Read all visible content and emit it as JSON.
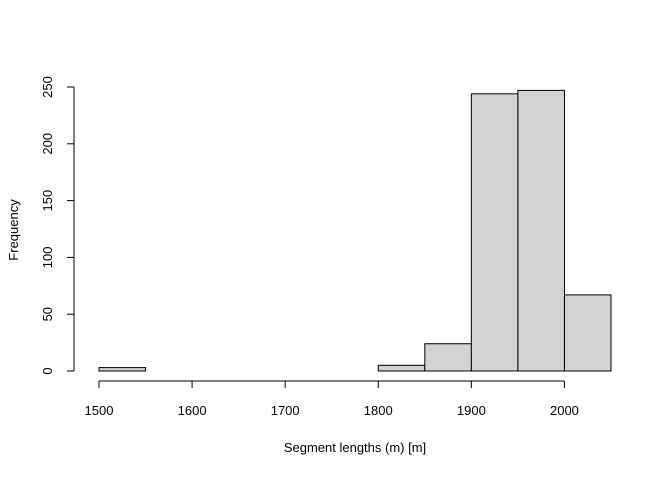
{
  "chart_data": {
    "type": "bar",
    "subtype": "histogram",
    "title": "",
    "xlabel": "Segment lengths (m) [m]",
    "ylabel": "Frequency",
    "bins": [
      {
        "start": 1500,
        "end": 1550,
        "count": 3
      },
      {
        "start": 1550,
        "end": 1600,
        "count": 0
      },
      {
        "start": 1600,
        "end": 1650,
        "count": 0
      },
      {
        "start": 1650,
        "end": 1700,
        "count": 0
      },
      {
        "start": 1700,
        "end": 1750,
        "count": 0
      },
      {
        "start": 1750,
        "end": 1800,
        "count": 0
      },
      {
        "start": 1800,
        "end": 1850,
        "count": 5
      },
      {
        "start": 1850,
        "end": 1900,
        "count": 24
      },
      {
        "start": 1900,
        "end": 1950,
        "count": 244
      },
      {
        "start": 1950,
        "end": 2000,
        "count": 247
      },
      {
        "start": 2000,
        "end": 2050,
        "count": 67
      }
    ],
    "xlim": [
      1500,
      2050
    ],
    "ylim": [
      0,
      250
    ],
    "x_ticks": [
      "1500",
      "1600",
      "1700",
      "1800",
      "1900",
      "2000"
    ],
    "y_ticks": [
      "0",
      "50",
      "100",
      "150",
      "200",
      "250"
    ],
    "bar_color": "#d3d3d3",
    "edge_color": "#000000",
    "grid": false,
    "legend": "none"
  }
}
